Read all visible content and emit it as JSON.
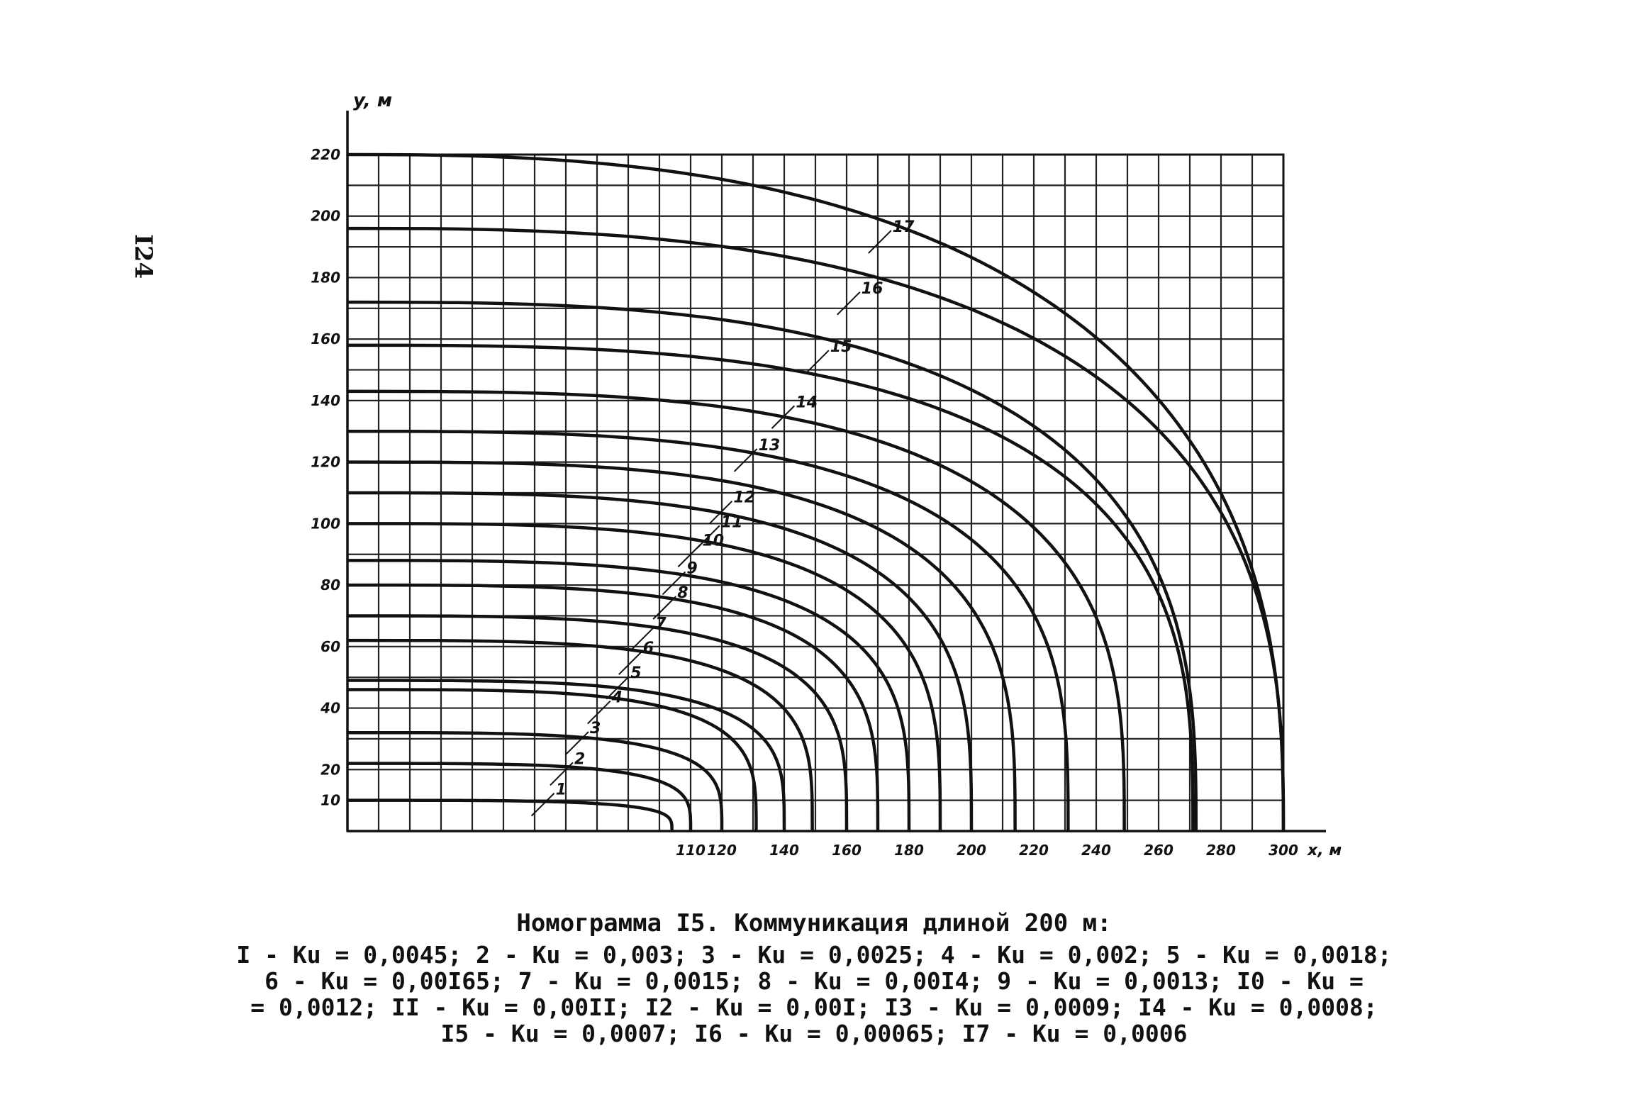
{
  "page_number": "I24",
  "caption": {
    "title": "Номограмма I5. Коммуникация длиной 200 м:",
    "lines": [
      "I - Ku = 0,0045; 2 - Ku = 0,003; 3 - Ku = 0,0025; 4 - Ku = 0,002; 5 - Ku = 0,0018;",
      "6 - Ku = 0,00I65; 7 - Ku = 0,0015; 8 - Ku = 0,00I4; 9 - Ku = 0,0013; I0 - Ku =",
      "= 0,0012; II - Ku = 0,00II; I2 - Ku = 0,00I; I3 - Ku = 0,0009; I4 - Ku = 0,0008;",
      "I5 - Ku = 0,0007; I6 - Ku = 0,00065; I7 - Ku = 0,0006"
    ]
  },
  "chart_data": {
    "type": "line",
    "xlabel": "x, м",
    "ylabel": "y, м",
    "xlim": [
      0,
      300
    ],
    "ylim": [
      0,
      220
    ],
    "grid": true,
    "x_ticks": [
      {
        "value": 110,
        "label": "110"
      },
      {
        "value": 120,
        "label": "120"
      },
      {
        "value": 140,
        "label": "140"
      },
      {
        "value": 160,
        "label": "160"
      },
      {
        "value": 180,
        "label": "180"
      },
      {
        "value": 200,
        "label": "200"
      },
      {
        "value": 220,
        "label": "220"
      },
      {
        "value": 240,
        "label": "240"
      },
      {
        "value": 260,
        "label": "260"
      },
      {
        "value": 280,
        "label": "280"
      },
      {
        "value": 300,
        "label": "300"
      }
    ],
    "y_ticks": [
      {
        "value": 10,
        "label": "10"
      },
      {
        "value": 20,
        "label": "20"
      },
      {
        "value": 40,
        "label": "40"
      },
      {
        "value": 60,
        "label": "60"
      },
      {
        "value": 80,
        "label": "80"
      },
      {
        "value": 100,
        "label": "100"
      },
      {
        "value": 120,
        "label": "120"
      },
      {
        "value": 140,
        "label": "140"
      },
      {
        "value": 160,
        "label": "160"
      },
      {
        "value": 180,
        "label": "180"
      },
      {
        "value": 200,
        "label": "200"
      },
      {
        "value": 220,
        "label": "220"
      }
    ],
    "series": [
      {
        "name": "1",
        "ku": "0,0045",
        "y_at_x0": 10,
        "x_at_y0": 104
      },
      {
        "name": "2",
        "ku": "0,003",
        "y_at_x0": 22,
        "x_at_y0": 110
      },
      {
        "name": "3",
        "ku": "0,0025",
        "y_at_x0": 32,
        "x_at_y0": 120
      },
      {
        "name": "4",
        "ku": "0,002",
        "y_at_x0": 46,
        "x_at_y0": 131
      },
      {
        "name": "5",
        "ku": "0,0018",
        "y_at_x0": 49,
        "x_at_y0": 140
      },
      {
        "name": "6",
        "ku": "0,00I65",
        "y_at_x0": 62,
        "x_at_y0": 149
      },
      {
        "name": "7",
        "ku": "0,0015",
        "y_at_x0": 70,
        "x_at_y0": 160
      },
      {
        "name": "8",
        "ku": "0,00I4",
        "y_at_x0": 80,
        "x_at_y0": 170
      },
      {
        "name": "9",
        "ku": "0,0013",
        "y_at_x0": 88,
        "x_at_y0": 180
      },
      {
        "name": "10",
        "ku": "0,0012",
        "y_at_x0": 100,
        "x_at_y0": 190
      },
      {
        "name": "11",
        "ku": "0,00II",
        "y_at_x0": 110,
        "x_at_y0": 200
      },
      {
        "name": "12",
        "ku": "0,00I",
        "y_at_x0": 120,
        "x_at_y0": 214
      },
      {
        "name": "13",
        "ku": "0,0009",
        "y_at_x0": 130,
        "x_at_y0": 231
      },
      {
        "name": "14",
        "ku": "0,0008",
        "y_at_x0": 143,
        "x_at_y0": 249
      },
      {
        "name": "15",
        "ku": "0,0007",
        "y_at_x0": 158,
        "x_at_y0": 271
      },
      {
        "name": "16",
        "ku": "0,00065",
        "y_at_x0": 172,
        "x_at_y0": 272
      },
      {
        "name": "17",
        "ku": "0,0006",
        "y_at_x0": 196,
        "x_at_y0": 300
      },
      {
        "name": "",
        "y_at_x0": 220,
        "x_at_y0": 300
      }
    ],
    "curve_label_positions": [
      {
        "name": "1",
        "x": 64,
        "y": 10
      },
      {
        "name": "2",
        "x": 70,
        "y": 20
      },
      {
        "name": "3",
        "x": 75,
        "y": 30
      },
      {
        "name": "4",
        "x": 82,
        "y": 40
      },
      {
        "name": "5",
        "x": 88,
        "y": 48
      },
      {
        "name": "6",
        "x": 92,
        "y": 56
      },
      {
        "name": "7",
        "x": 96,
        "y": 64
      },
      {
        "name": "8",
        "x": 103,
        "y": 74
      },
      {
        "name": "9",
        "x": 106,
        "y": 82
      },
      {
        "name": "10",
        "x": 111,
        "y": 91
      },
      {
        "name": "11",
        "x": 117,
        "y": 97
      },
      {
        "name": "12",
        "x": 121,
        "y": 105
      },
      {
        "name": "13",
        "x": 129,
        "y": 122
      },
      {
        "name": "14",
        "x": 141,
        "y": 136
      },
      {
        "name": "15",
        "x": 152,
        "y": 154
      },
      {
        "name": "16",
        "x": 162,
        "y": 173
      },
      {
        "name": "17",
        "x": 172,
        "y": 193
      }
    ]
  }
}
